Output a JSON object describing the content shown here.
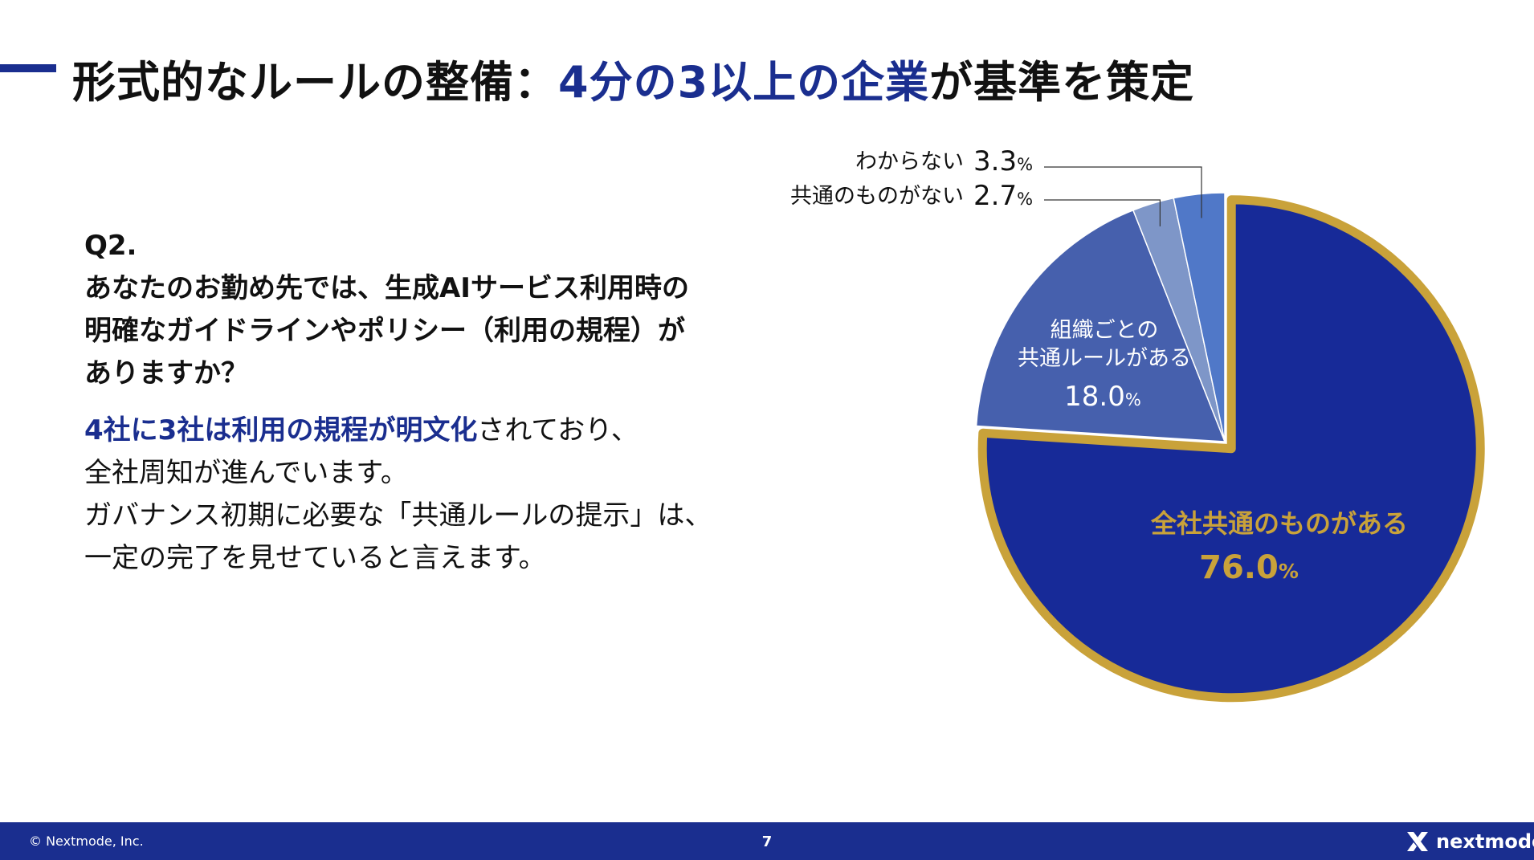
{
  "header": {
    "title_part1": "形式的なルールの整備：",
    "title_highlight": "4分の3以上の企業",
    "title_part2": "が基準を策定"
  },
  "question": {
    "number": "Q2.",
    "lines": [
      "あなたのお勤め先では、生成AIサービス利用時の",
      "明確なガイドラインやポリシー（利用の規程）が",
      "ありますか？"
    ]
  },
  "body": {
    "line1_highlight": "4社に3社は利用の規程が明文化",
    "line1_rest": "されており、",
    "line2": "全社周知が進んでいます。",
    "line3": "ガバナンス初期に必要な「共通ルールの提示」は、",
    "line4": "一定の完了を見せていると言えます。"
  },
  "chart_data": {
    "type": "pie",
    "unit": "%",
    "slices": [
      {
        "label": "全社共通のものがある",
        "value": 76.0,
        "value_text": "76.0",
        "color": "#172a98",
        "label_color": "#c9a23a",
        "highlight": true
      },
      {
        "label": "組織ごとの共通ルールがある",
        "label_lines": [
          "組織ごとの",
          "共通ルールがある"
        ],
        "value": 18.0,
        "value_text": "18.0",
        "color": "#4660ad",
        "label_color": "#ffffff"
      },
      {
        "label": "共通のものがない",
        "value": 2.7,
        "value_text": "2.7",
        "color": "#7e96c8",
        "label_color": "#111111"
      },
      {
        "label": "わからない",
        "value": 3.3,
        "value_text": "3.3",
        "color": "#5078c8",
        "label_color": "#111111"
      }
    ],
    "highlight_color": "#c9a23a"
  },
  "footer": {
    "copyright": "© Nextmode, Inc.",
    "page_number": "7",
    "logo_text": "nextmode"
  }
}
